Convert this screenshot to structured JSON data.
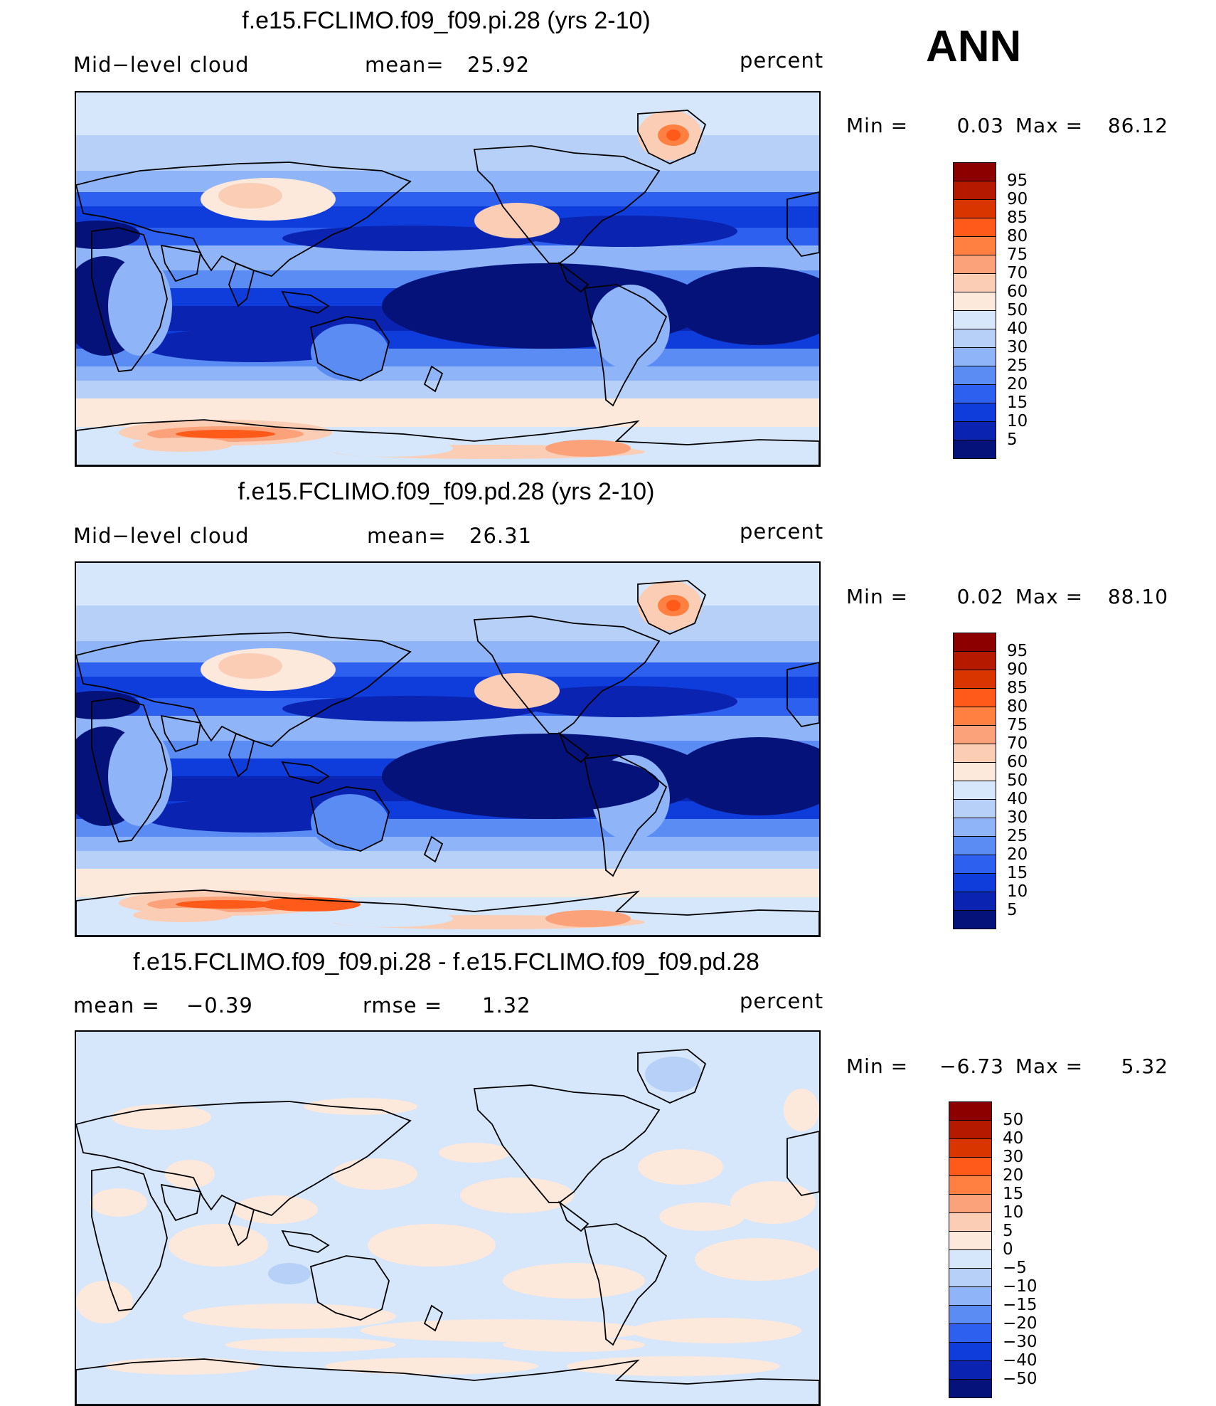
{
  "season": "ANN",
  "panels": [
    {
      "title": "f.e15.FCLIMO.f09_f09.pi.28 (yrs 2-10)",
      "left_label": "Mid−level  cloud",
      "mid_label": "mean=",
      "mid_value": "25.92",
      "units": "percent",
      "min_label": "Min  =",
      "min_value": "0.03",
      "max_label": "Max  =",
      "max_value": "86.12"
    },
    {
      "title": "f.e15.FCLIMO.f09_f09.pd.28 (yrs 2-10)",
      "left_label": "Mid−level  cloud",
      "mid_label": "mean=",
      "mid_value": "26.31",
      "units": "percent",
      "min_label": "Min  =",
      "min_value": "0.02",
      "max_label": "Max  =",
      "max_value": "88.10"
    },
    {
      "title": "f.e15.FCLIMO.f09_f09.pi.28 - f.e15.FCLIMO.f09_f09.pd.28",
      "left_label": "mean  =",
      "left_value": "−0.39",
      "mid_label": "rmse  =",
      "mid_value": "1.32",
      "units": "percent",
      "min_label": "Min  =",
      "min_value": "−6.73",
      "max_label": "Max  =",
      "max_value": "5.32"
    }
  ],
  "colorbars": {
    "cloud": {
      "labels": [
        "95",
        "90",
        "85",
        "80",
        "75",
        "70",
        "60",
        "50",
        "40",
        "30",
        "25",
        "20",
        "15",
        "10",
        "5"
      ],
      "colors": [
        "#8c0000",
        "#b51a00",
        "#d93500",
        "#ff5a1a",
        "#ff8040",
        "#fca27a",
        "#fbcdb4",
        "#fde8dc",
        "#d6e6fb",
        "#b6d0f8",
        "#8fb5f8",
        "#5a8cf4",
        "#2e60f0",
        "#0f3ddc",
        "#0a23b0",
        "#05127a"
      ]
    },
    "diff": {
      "labels": [
        "50",
        "40",
        "30",
        "20",
        "15",
        "10",
        "5",
        "0",
        "−5",
        "−10",
        "−15",
        "−20",
        "−30",
        "−40",
        "−50"
      ],
      "colors": [
        "#8c0000",
        "#b51a00",
        "#d93500",
        "#ff5a1a",
        "#ff8040",
        "#fca27a",
        "#fbcdb4",
        "#fde8dc",
        "#d6e6fb",
        "#b6d0f8",
        "#8fb5f8",
        "#5a8cf4",
        "#2e60f0",
        "#0f3ddc",
        "#0a23b0",
        "#05127a"
      ]
    }
  },
  "chart_data": [
    {
      "type": "heatmap",
      "title": "f.e15.FCLIMO.f09_f09.pi.28 (yrs 2-10)",
      "variable": "Mid-level cloud",
      "units": "percent",
      "mean": 25.92,
      "min": 0.03,
      "max": 86.12,
      "levels": [
        5,
        10,
        15,
        20,
        25,
        30,
        40,
        50,
        60,
        70,
        75,
        80,
        85,
        90,
        95
      ],
      "projection": "cylindrical equidistant, global, centered on Pacific"
    },
    {
      "type": "heatmap",
      "title": "f.e15.FCLIMO.f09_f09.pd.28 (yrs 2-10)",
      "variable": "Mid-level cloud",
      "units": "percent",
      "mean": 26.31,
      "min": 0.02,
      "max": 88.1,
      "levels": [
        5,
        10,
        15,
        20,
        25,
        30,
        40,
        50,
        60,
        70,
        75,
        80,
        85,
        90,
        95
      ],
      "projection": "cylindrical equidistant, global, centered on Pacific"
    },
    {
      "type": "heatmap",
      "title": "f.e15.FCLIMO.f09_f09.pi.28 - f.e15.FCLIMO.f09_f09.pd.28",
      "units": "percent",
      "mean": -0.39,
      "rmse": 1.32,
      "min": -6.73,
      "max": 5.32,
      "levels": [
        -50,
        -40,
        -30,
        -20,
        -15,
        -10,
        -5,
        0,
        5,
        10,
        15,
        20,
        30,
        40,
        50
      ],
      "projection": "cylindrical equidistant, global, centered on Pacific"
    }
  ]
}
